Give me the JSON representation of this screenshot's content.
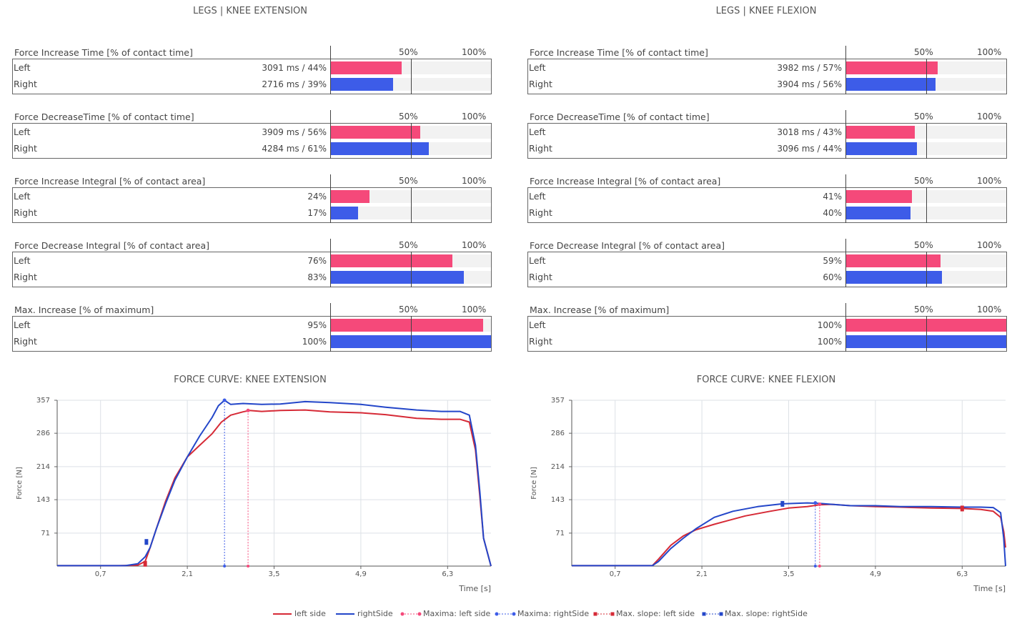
{
  "columns": [
    {
      "title": "LEGS | KNEE EXTENSION",
      "metrics": [
        {
          "title": "Force Increase Time [% of contact time]",
          "tick50": "50%",
          "tick100": "100%",
          "rows": [
            {
              "label": "Left",
              "value": "3091 ms / 44%",
              "pct": 44,
              "color": "#f5497a"
            },
            {
              "label": "Right",
              "value": "2716 ms / 39%",
              "pct": 39,
              "color": "#3d5ce8"
            }
          ]
        },
        {
          "title": "Force DecreaseTime [% of contact time]",
          "tick50": "50%",
          "tick100": "100%",
          "rows": [
            {
              "label": "Left",
              "value": "3909 ms / 56%",
              "pct": 56,
              "color": "#f5497a"
            },
            {
              "label": "Right",
              "value": "4284 ms / 61%",
              "pct": 61,
              "color": "#3d5ce8"
            }
          ]
        },
        {
          "title": "Force Increase Integral [% of contact area]",
          "tick50": "50%",
          "tick100": "100%",
          "rows": [
            {
              "label": "Left",
              "value": "24%",
              "pct": 24,
              "color": "#f5497a"
            },
            {
              "label": "Right",
              "value": "17%",
              "pct": 17,
              "color": "#3d5ce8"
            }
          ]
        },
        {
          "title": "Force Decrease Integral [% of contact area]",
          "tick50": "50%",
          "tick100": "100%",
          "rows": [
            {
              "label": "Left",
              "value": "76%",
              "pct": 76,
              "color": "#f5497a"
            },
            {
              "label": "Right",
              "value": "83%",
              "pct": 83,
              "color": "#3d5ce8"
            }
          ]
        },
        {
          "title": "Max. Increase [% of maximum]",
          "tick50": "50%",
          "tick100": "100%",
          "rows": [
            {
              "label": "Left",
              "value": "95%",
              "pct": 95,
              "color": "#f5497a"
            },
            {
              "label": "Right",
              "value": "100%",
              "pct": 100,
              "color": "#3d5ce8"
            }
          ]
        }
      ]
    },
    {
      "title": "LEGS | KNEE FLEXION",
      "metrics": [
        {
          "title": "Force Increase Time [% of contact time]",
          "tick50": "50%",
          "tick100": "100%",
          "rows": [
            {
              "label": "Left",
              "value": "3982 ms / 57%",
              "pct": 57,
              "color": "#f5497a"
            },
            {
              "label": "Right",
              "value": "3904 ms / 56%",
              "pct": 56,
              "color": "#3d5ce8"
            }
          ]
        },
        {
          "title": "Force DecreaseTime [% of contact time]",
          "tick50": "50%",
          "tick100": "100%",
          "rows": [
            {
              "label": "Left",
              "value": "3018 ms / 43%",
              "pct": 43,
              "color": "#f5497a"
            },
            {
              "label": "Right",
              "value": "3096 ms / 44%",
              "pct": 44,
              "color": "#3d5ce8"
            }
          ]
        },
        {
          "title": "Force Increase Integral [% of contact area]",
          "tick50": "50%",
          "tick100": "100%",
          "rows": [
            {
              "label": "Left",
              "value": "41%",
              "pct": 41,
              "color": "#f5497a"
            },
            {
              "label": "Right",
              "value": "40%",
              "pct": 40,
              "color": "#3d5ce8"
            }
          ]
        },
        {
          "title": "Force Decrease Integral [% of contact area]",
          "tick50": "50%",
          "tick100": "100%",
          "rows": [
            {
              "label": "Left",
              "value": "59%",
              "pct": 59,
              "color": "#f5497a"
            },
            {
              "label": "Right",
              "value": "60%",
              "pct": 60,
              "color": "#3d5ce8"
            }
          ]
        },
        {
          "title": "Max. Increase [% of maximum]",
          "tick50": "50%",
          "tick100": "100%",
          "rows": [
            {
              "label": "Left",
              "value": "100%",
              "pct": 100,
              "color": "#f5497a"
            },
            {
              "label": "Right",
              "value": "100%",
              "pct": 100,
              "color": "#3d5ce8"
            }
          ]
        }
      ]
    }
  ],
  "chart_data": [
    {
      "type": "line",
      "title": "FORCE CURVE: KNEE EXTENSION",
      "xlabel": "Time [s]",
      "ylabel": "Force [N]",
      "xlim": [
        0,
        7
      ],
      "ylim": [
        0,
        357
      ],
      "xticks": [
        0.7,
        2.1,
        3.5,
        4.9,
        6.3
      ],
      "xtick_labels": [
        "0,7",
        "2,1",
        "3,5",
        "4,9",
        "6,3"
      ],
      "yticks": [
        71,
        143,
        214,
        286,
        357
      ],
      "grid": true,
      "series": [
        {
          "name": "left side",
          "color": "#d62a36",
          "x": [
            0,
            1.0,
            1.3,
            1.42,
            1.5,
            1.6,
            1.75,
            1.9,
            2.1,
            2.3,
            2.5,
            2.65,
            2.8,
            3.0,
            3.1,
            3.3,
            3.6,
            4.0,
            4.4,
            4.9,
            5.3,
            5.8,
            6.2,
            6.5,
            6.65,
            6.75,
            6.82,
            6.88,
            7.0
          ],
          "y": [
            1,
            1,
            2,
            10,
            40,
            80,
            140,
            190,
            235,
            260,
            285,
            310,
            325,
            332,
            335,
            333,
            335,
            336,
            332,
            330,
            326,
            318,
            316,
            316,
            310,
            250,
            150,
            60,
            0
          ]
        },
        {
          "name": "rightSide",
          "color": "#2346c9",
          "x": [
            0,
            1.1,
            1.3,
            1.42,
            1.5,
            1.6,
            1.75,
            1.9,
            2.1,
            2.3,
            2.5,
            2.6,
            2.7,
            2.8,
            3.0,
            3.3,
            3.6,
            4.0,
            4.4,
            4.9,
            5.3,
            5.8,
            6.2,
            6.5,
            6.65,
            6.75,
            6.82,
            6.88,
            7.0
          ],
          "y": [
            1,
            1,
            5,
            20,
            40,
            80,
            135,
            185,
            235,
            280,
            320,
            345,
            357,
            348,
            350,
            348,
            349,
            354,
            352,
            348,
            342,
            336,
            333,
            333,
            325,
            260,
            160,
            60,
            0
          ]
        }
      ],
      "markers": {
        "maxima_left_x": 3.08,
        "maxima_left_y": 335,
        "maxima_right_x": 2.7,
        "maxima_right_y": 357,
        "slope_left_x": 1.42,
        "slope_left_y": 5,
        "slope_right_x": 1.44,
        "slope_right_y": 52
      }
    },
    {
      "type": "line",
      "title": "FORCE CURVE: KNEE FLEXION",
      "xlabel": "Time [s]",
      "ylabel": "Force [N]",
      "xlim": [
        0,
        7
      ],
      "ylim": [
        0,
        357
      ],
      "xticks": [
        0.7,
        2.1,
        3.5,
        4.9,
        6.3
      ],
      "xtick_labels": [
        "0,7",
        "2,1",
        "3,5",
        "4,9",
        "6,3"
      ],
      "yticks": [
        71,
        143,
        214,
        286,
        357
      ],
      "grid": true,
      "series": [
        {
          "name": "left side",
          "color": "#d62a36",
          "x": [
            0,
            1.3,
            1.4,
            1.6,
            1.8,
            2.0,
            2.3,
            2.8,
            3.2,
            3.5,
            3.8,
            4.0,
            4.2,
            4.5,
            4.9,
            5.3,
            5.8,
            6.3,
            6.6,
            6.8,
            6.92,
            6.97,
            7.0
          ],
          "y": [
            1,
            1,
            15,
            45,
            65,
            78,
            90,
            108,
            118,
            125,
            128,
            132,
            133,
            130,
            128,
            127,
            125,
            124,
            122,
            118,
            105,
            75,
            40
          ]
        },
        {
          "name": "rightSide",
          "color": "#2346c9",
          "x": [
            0,
            1.3,
            1.4,
            1.6,
            1.8,
            2.0,
            2.3,
            2.6,
            3.0,
            3.4,
            3.8,
            4.0,
            4.2,
            4.5,
            4.9,
            5.3,
            5.8,
            6.3,
            6.6,
            6.8,
            6.92,
            6.97,
            7.0
          ],
          "y": [
            1,
            1,
            10,
            38,
            60,
            80,
            105,
            118,
            128,
            134,
            136,
            135,
            133,
            130,
            130,
            128,
            128,
            127,
            127,
            126,
            115,
            60,
            0
          ]
        }
      ],
      "markers": {
        "maxima_left_x": 4.0,
        "maxima_left_y": 133,
        "maxima_right_x": 3.93,
        "maxima_right_y": 136,
        "slope_left_x": 6.3,
        "slope_left_y": 124,
        "slope_right_x": 3.4,
        "slope_right_y": 134
      }
    }
  ],
  "legend": [
    {
      "label": "left side",
      "kind": "line",
      "color": "#d62a36"
    },
    {
      "label": "rightSide",
      "kind": "line",
      "color": "#2346c9"
    },
    {
      "label": "Maxima: left side",
      "kind": "dotdash",
      "color": "#f5497a"
    },
    {
      "label": "Maxima: rightSide",
      "kind": "dotdash",
      "color": "#3d5ce8"
    },
    {
      "label": "Max. slope: left side",
      "kind": "sqdash",
      "color": "#d62a36"
    },
    {
      "label": "Max. slope: rightSide",
      "kind": "sqdash",
      "color": "#2346c9"
    }
  ]
}
